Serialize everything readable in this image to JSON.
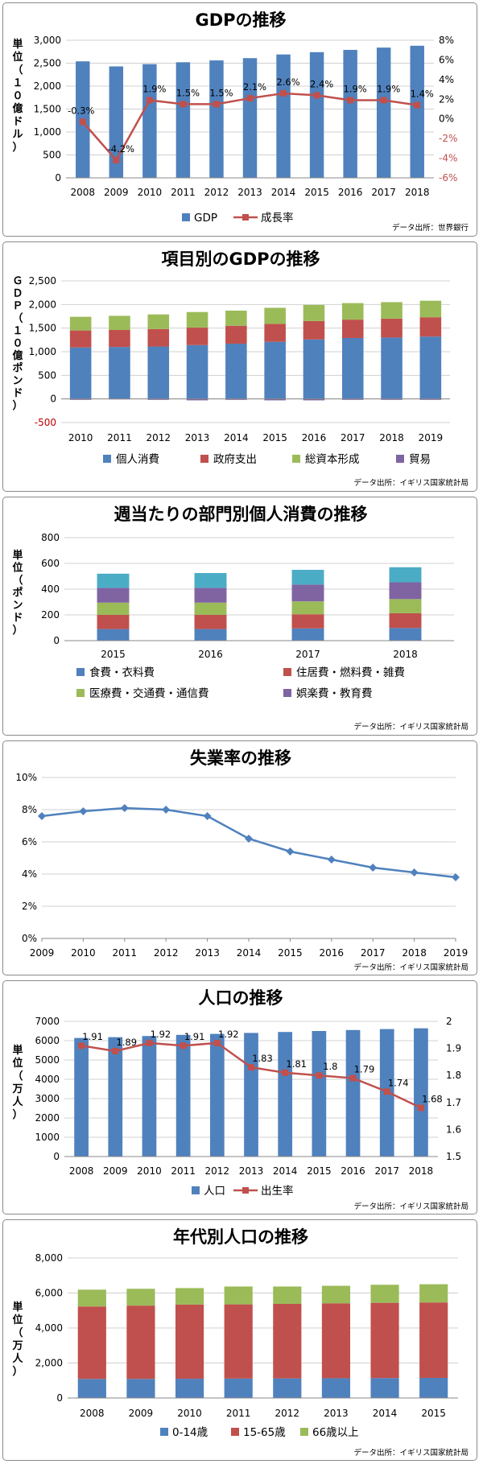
{
  "charts": [
    {
      "id": "gdp",
      "title": "GDPの推移",
      "source": "データ出所：世界銀行",
      "ylabel": "単位（１０億ドル）",
      "legend": [
        "GDP",
        "成長率"
      ],
      "colors": {
        "bar": "#4f81bd",
        "line": "#c0504d"
      }
    },
    {
      "id": "gdp-items",
      "title": "項目別のGDPの推移",
      "source": "データ出所：イギリス国家統計局",
      "ylabel": "ＧＤＰ（１０億ポンド）",
      "legend": [
        "個人消費",
        "政府支出",
        "総資本形成",
        "貿易"
      ],
      "colors": {
        "series": [
          "#4f81bd",
          "#c0504d",
          "#9bbb59",
          "#8064a2"
        ]
      }
    },
    {
      "id": "weekly-consumption",
      "title": "週当たりの部門別個人消費の推移",
      "source": "データ出所：イギリス国家統計局",
      "ylabel": "単位（ポンド）",
      "legend": [
        "食費・衣料費",
        "住居費・燃料費・雑費",
        "医療費・交通費・通信費",
        "娯楽費・教育費"
      ],
      "colors": {
        "series": [
          "#4f81bd",
          "#c0504d",
          "#9bbb59",
          "#8064a2",
          "#4bacc6"
        ]
      }
    },
    {
      "id": "unemployment",
      "title": "失業率の推移",
      "source": "データ出所：イギリス国家統計局",
      "colors": {
        "line": "#4f81bd"
      }
    },
    {
      "id": "population",
      "title": "人口の推移",
      "source": "データ出所：イギリス国家統計局",
      "ylabel": "単位（万人）",
      "legend": [
        "人口",
        "出生率"
      ],
      "colors": {
        "bar": "#4f81bd",
        "line": "#c0504d"
      }
    },
    {
      "id": "population-age",
      "title": "年代別人口の推移",
      "source": "データ出所：イギリス国家統計局",
      "ylabel": "単位（万人）",
      "legend": [
        "0-14歳",
        "15-65歳",
        "66歳以上"
      ],
      "colors": {
        "series": [
          "#4f81bd",
          "#c0504d",
          "#9bbb59"
        ]
      }
    }
  ],
  "chart_data": [
    {
      "type": "bar",
      "title": "GDPの推移",
      "categories": [
        "2008",
        "2009",
        "2010",
        "2011",
        "2012",
        "2013",
        "2014",
        "2015",
        "2016",
        "2017",
        "2018"
      ],
      "ylim": [
        0,
        3000
      ],
      "yticks": [
        "0",
        "500",
        "1,000",
        "1,500",
        "2,000",
        "2,500",
        "3,000"
      ],
      "y2lim": [
        -6,
        8
      ],
      "y2ticks": [
        "-6%",
        "-4%",
        "-2%",
        "0%",
        "2%",
        "4%",
        "6%",
        "8%"
      ],
      "series": [
        {
          "name": "GDP",
          "type": "bar",
          "axis": "left",
          "values": [
            2540,
            2430,
            2480,
            2520,
            2560,
            2610,
            2690,
            2740,
            2790,
            2840,
            2880
          ]
        },
        {
          "name": "成長率",
          "type": "line",
          "axis": "right",
          "values": [
            -0.3,
            -4.2,
            1.9,
            1.5,
            1.5,
            2.1,
            2.6,
            2.4,
            1.9,
            1.9,
            1.4
          ],
          "labels": [
            "-0.3%",
            "-4.2%",
            "1.9%",
            "1.5%",
            "1.5%",
            "2.1%",
            "2.6%",
            "2.4%",
            "1.9%",
            "1.9%",
            "1.4%"
          ]
        }
      ]
    },
    {
      "type": "bar",
      "stacked": true,
      "title": "項目別のGDPの推移",
      "categories": [
        "2010",
        "2011",
        "2012",
        "2013",
        "2014",
        "2015",
        "2016",
        "2017",
        "2018",
        "2019"
      ],
      "ylim": [
        -500,
        2500
      ],
      "yticks": [
        "-500",
        "0",
        "500",
        "1,000",
        "1,500",
        "2,000",
        "2,500"
      ],
      "series": [
        {
          "name": "個人消費",
          "values": [
            1090,
            1100,
            1110,
            1140,
            1170,
            1210,
            1260,
            1290,
            1300,
            1320
          ]
        },
        {
          "name": "政府支出",
          "values": [
            360,
            360,
            370,
            370,
            380,
            380,
            390,
            390,
            400,
            410
          ]
        },
        {
          "name": "総資本形成",
          "values": [
            290,
            300,
            310,
            330,
            320,
            340,
            340,
            350,
            350,
            350
          ]
        },
        {
          "name": "貿易",
          "values": [
            -20,
            -10,
            -20,
            -30,
            -20,
            -30,
            -30,
            -20,
            -20,
            -20
          ]
        }
      ]
    },
    {
      "type": "bar",
      "stacked": true,
      "title": "週当たりの部門別個人消費の推移",
      "categories": [
        "2015",
        "2016",
        "2017",
        "2018"
      ],
      "ylim": [
        0,
        800
      ],
      "yticks": [
        "0",
        "200",
        "400",
        "600",
        "800"
      ],
      "series": [
        {
          "name": "食費・衣料費",
          "values": [
            90,
            90,
            95,
            98
          ]
        },
        {
          "name": "住居費・燃料費・雑費",
          "values": [
            110,
            110,
            110,
            115
          ]
        },
        {
          "name": "医療費・交通費・通信費",
          "values": [
            95,
            95,
            100,
            110
          ]
        },
        {
          "name": "娯楽費・教育費",
          "values": [
            115,
            115,
            130,
            130
          ]
        },
        {
          "name": "",
          "values": [
            110,
            115,
            115,
            117
          ]
        }
      ]
    },
    {
      "type": "line",
      "title": "失業率の推移",
      "x": [
        "2009",
        "2010",
        "2011",
        "2012",
        "2013",
        "2014",
        "2015",
        "2016",
        "2017",
        "2018",
        "2019"
      ],
      "ylim": [
        0,
        10
      ],
      "yticks": [
        "0%",
        "2%",
        "4%",
        "6%",
        "8%",
        "10%"
      ],
      "series": [
        {
          "name": "",
          "values": [
            7.6,
            7.9,
            8.1,
            8.0,
            7.6,
            6.2,
            5.4,
            4.9,
            4.4,
            4.1,
            3.8
          ]
        }
      ]
    },
    {
      "type": "bar",
      "title": "人口の推移",
      "categories": [
        "2008",
        "2009",
        "2010",
        "2011",
        "2012",
        "2013",
        "2014",
        "2015",
        "2016",
        "2017",
        "2018"
      ],
      "ylim": [
        0,
        7000
      ],
      "yticks": [
        "0",
        "1000",
        "2000",
        "3000",
        "4000",
        "5000",
        "6000",
        "7000"
      ],
      "y2lim": [
        1.5,
        2
      ],
      "y2ticks": [
        "1.5",
        "1.6",
        "1.7",
        "1.8",
        "1.9",
        "2"
      ],
      "series": [
        {
          "name": "人口",
          "type": "bar",
          "axis": "left",
          "values": [
            6140,
            6180,
            6240,
            6300,
            6350,
            6400,
            6450,
            6500,
            6550,
            6600,
            6640
          ]
        },
        {
          "name": "出生率",
          "type": "line",
          "axis": "right",
          "values": [
            1.91,
            1.89,
            1.92,
            1.91,
            1.92,
            1.83,
            1.81,
            1.8,
            1.79,
            1.74,
            1.68
          ],
          "labels": [
            "1.91",
            "1.89",
            "1.92",
            "1.91",
            "1.92",
            "1.83",
            "1.81",
            "1.8",
            "1.79",
            "1.74",
            "1.68"
          ]
        }
      ]
    },
    {
      "type": "bar",
      "stacked": true,
      "title": "年代別人口の推移",
      "categories": [
        "2008",
        "2009",
        "2010",
        "2011",
        "2012",
        "2013",
        "2014",
        "2015"
      ],
      "ylim": [
        0,
        8000
      ],
      "yticks": [
        "0",
        "2,000",
        "4,000",
        "6,000",
        "8,000"
      ],
      "series": [
        {
          "name": "0-14歳",
          "values": [
            1090,
            1090,
            1100,
            1110,
            1120,
            1130,
            1140,
            1150
          ]
        },
        {
          "name": "15-65歳",
          "values": [
            4140,
            4190,
            4240,
            4240,
            4260,
            4280,
            4300,
            4310
          ]
        },
        {
          "name": "66歳以上",
          "values": [
            960,
            960,
            940,
            1020,
            990,
            1000,
            1030,
            1040
          ]
        }
      ]
    }
  ]
}
